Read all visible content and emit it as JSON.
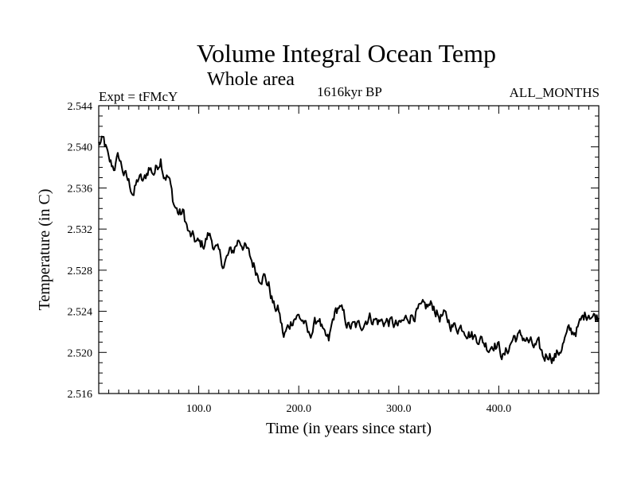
{
  "chart_data": {
    "type": "line",
    "title": "Volume Integral Ocean Temp",
    "subtitle": "Whole area",
    "experiment_label": "Expt = tFMcY",
    "period_label": "1616kyr BP",
    "months_label": "ALL_MONTHS",
    "xlabel": "Time (in years since start)",
    "ylabel": "Temperature (in C)",
    "xlim": [
      0,
      500
    ],
    "ylim": [
      2.516,
      2.544
    ],
    "xticks": [
      100,
      200,
      300,
      400
    ],
    "xtick_labels": [
      "100.0",
      "200.0",
      "300.0",
      "400.0"
    ],
    "yticks": [
      2.516,
      2.52,
      2.524,
      2.528,
      2.532,
      2.536,
      2.54,
      2.544
    ],
    "ytick_labels": [
      "2.516",
      "2.520",
      "2.524",
      "2.528",
      "2.532",
      "2.536",
      "2.540",
      "2.544"
    ],
    "line_color": "#000000",
    "series": [
      {
        "name": "Volume Integral Ocean Temp",
        "anchors": {
          "x": [
            0,
            5,
            8,
            10,
            15,
            20,
            25,
            30,
            35,
            40,
            45,
            50,
            55,
            58,
            62,
            65,
            70,
            75,
            80,
            85,
            90,
            95,
            100,
            105,
            110,
            115,
            120,
            125,
            130,
            135,
            140,
            145,
            150,
            155,
            160,
            165,
            170,
            175,
            180,
            185,
            190,
            195,
            200,
            205,
            210,
            215,
            220,
            225,
            230,
            235,
            240,
            245,
            250,
            255,
            260,
            270,
            280,
            290,
            300,
            310,
            320,
            330,
            335,
            340,
            345,
            350,
            355,
            360,
            365,
            370,
            375,
            380,
            385,
            390,
            395,
            400,
            405,
            410,
            415,
            420,
            425,
            430,
            435,
            440,
            445,
            450,
            455,
            460,
            465,
            470,
            475,
            480,
            485,
            490,
            495,
            500
          ],
          "y": [
            2.5403,
            2.5405,
            2.5395,
            2.5385,
            2.538,
            2.539,
            2.5375,
            2.5365,
            2.5355,
            2.537,
            2.5365,
            2.538,
            2.5375,
            2.538,
            2.539,
            2.5375,
            2.537,
            2.5345,
            2.5335,
            2.5335,
            2.5315,
            2.531,
            2.5305,
            2.5305,
            2.5315,
            2.5305,
            2.5295,
            2.5285,
            2.5295,
            2.53,
            2.531,
            2.5305,
            2.5295,
            2.5285,
            2.5275,
            2.5275,
            2.5265,
            2.5245,
            2.524,
            2.5215,
            2.5225,
            2.5235,
            2.5235,
            2.523,
            2.5215,
            2.5225,
            2.5235,
            2.5215,
            2.521,
            2.5235,
            2.5245,
            2.5235,
            2.5225,
            2.5225,
            2.5225,
            2.5235,
            2.523,
            2.523,
            2.5225,
            2.5235,
            2.524,
            2.5245,
            2.5245,
            2.5235,
            2.5235,
            2.523,
            2.5225,
            2.5225,
            2.5225,
            2.522,
            2.5215,
            2.5215,
            2.521,
            2.5205,
            2.521,
            2.5205,
            2.5195,
            2.5205,
            2.5215,
            2.5215,
            2.5215,
            2.521,
            2.5205,
            2.5205,
            2.5195,
            2.52,
            2.5195,
            2.52,
            2.521,
            2.522,
            2.522,
            2.5225,
            2.5235,
            2.524,
            2.5235,
            2.5235
          ]
        }
      }
    ]
  }
}
